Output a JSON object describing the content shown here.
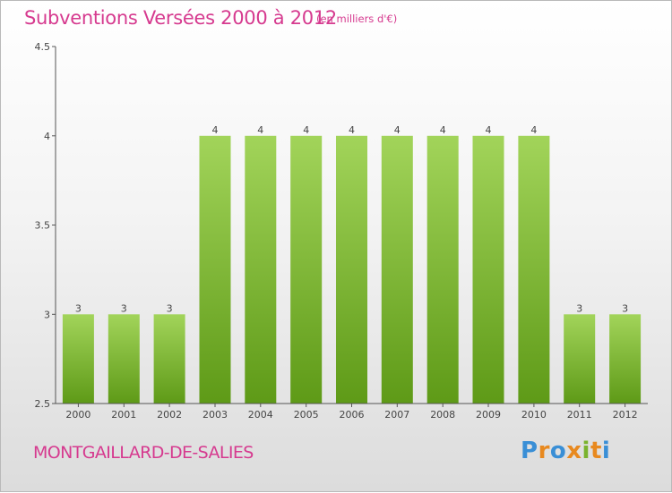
{
  "header": {
    "title": "Subventions Versées 2000 à 2012",
    "subtitle": "(en milliers d'€)"
  },
  "footer": {
    "commune": "MONTGAILLARD-DE-SALIES",
    "logo": {
      "text": "Proxiti",
      "colors": [
        "#3a8fd6",
        "#e8891f",
        "#3a8fd6",
        "#e8891f",
        "#7ab32e",
        "#e8891f",
        "#3a8fd6"
      ]
    }
  },
  "colors": {
    "accent": "#d63a8f",
    "bar_top": "#a2d45a",
    "bar_bottom": "#5e9a17",
    "axis": "#555555"
  },
  "chart_data": {
    "type": "bar",
    "categories": [
      "2000",
      "2001",
      "2002",
      "2003",
      "2004",
      "2005",
      "2006",
      "2007",
      "2008",
      "2009",
      "2010",
      "2011",
      "2012"
    ],
    "values": [
      3,
      3,
      3,
      4,
      4,
      4,
      4,
      4,
      4,
      4,
      4,
      3,
      3
    ],
    "data_labels": [
      "3",
      "3",
      "3",
      "4",
      "4",
      "4",
      "4",
      "4",
      "4",
      "4",
      "4",
      "3",
      "3"
    ],
    "y_ticks": [
      2.5,
      3,
      3.5,
      4,
      4.5
    ],
    "y_tick_labels": [
      "2.5",
      "3",
      "3.5",
      "4",
      "4.5"
    ],
    "ylim": [
      2.5,
      4.5
    ],
    "title": "Subventions Versées 2000 à 2012",
    "xlabel": "",
    "ylabel": "",
    "grid": false
  }
}
